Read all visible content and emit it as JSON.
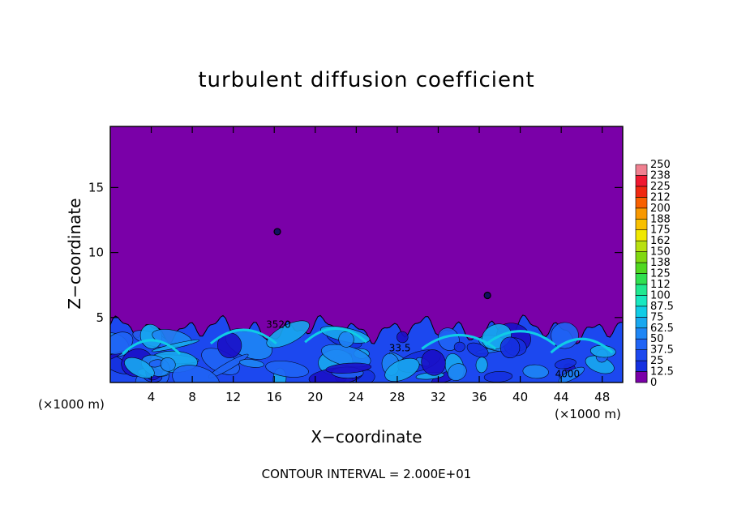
{
  "chart_data": {
    "type": "heatmap",
    "title": "turbulent diffusion coefficient",
    "xlabel": "X−coordinate",
    "ylabel": "Z−coordinate",
    "x_unit_left": "(×1000 m)",
    "x_unit_right": "(×1000 m)",
    "footer": "CONTOUR INTERVAL = 2.000E+01",
    "xlim": [
      0,
      50
    ],
    "ylim": [
      0,
      19.7
    ],
    "x_ticks": [
      {
        "value": 4,
        "label": "4"
      },
      {
        "value": 8,
        "label": "8"
      },
      {
        "value": 12,
        "label": "12"
      },
      {
        "value": 16,
        "label": "16"
      },
      {
        "value": 20,
        "label": "20"
      },
      {
        "value": 24,
        "label": "24"
      },
      {
        "value": 28,
        "label": "28"
      },
      {
        "value": 32,
        "label": "32"
      },
      {
        "value": 36,
        "label": "36"
      },
      {
        "value": 40,
        "label": "40"
      },
      {
        "value": 44,
        "label": "44"
      },
      {
        "value": 48,
        "label": "48"
      }
    ],
    "y_ticks": [
      {
        "value": 5,
        "label": "5"
      },
      {
        "value": 10,
        "label": "10"
      },
      {
        "value": 15,
        "label": "15"
      }
    ],
    "colorbar": {
      "levels": [
        "0",
        "12.5",
        "25",
        "37.5",
        "50",
        "62.5",
        "75",
        "87.5",
        "100",
        "112",
        "125",
        "138",
        "150",
        "162",
        "175",
        "188",
        "200",
        "212",
        "225",
        "238",
        "250"
      ],
      "colors": [
        "#7a00a8",
        "#1a10c8",
        "#1530e0",
        "#1c48ef",
        "#2064f5",
        "#1e86f5",
        "#18a8f0",
        "#10cce6",
        "#18e8c0",
        "#20e890",
        "#30e050",
        "#50d820",
        "#80d810",
        "#b8e010",
        "#f0e800",
        "#f8c000",
        "#f89800",
        "#f86000",
        "#f02810",
        "#f01830",
        "#f08090"
      ]
    },
    "background_value": 0,
    "turbulent_layer_top": 5.0,
    "contour_labels": [
      {
        "text": "3520",
        "x": 15.2,
        "z": 4.2
      },
      {
        "text": "4000",
        "x": 43.4,
        "z": 0.4
      },
      {
        "text": "33.5",
        "x": 27.2,
        "z": 2.4
      }
    ],
    "blobs": [
      {
        "x": 16.3,
        "z": 11.6
      },
      {
        "x": 36.8,
        "z": 6.7
      }
    ]
  }
}
